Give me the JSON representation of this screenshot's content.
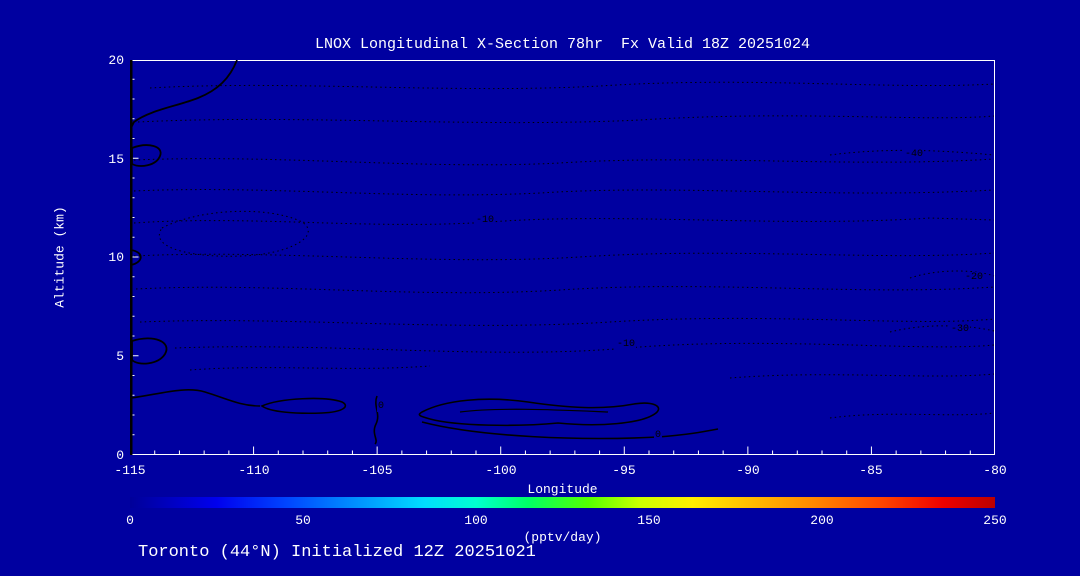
{
  "title": "LNOX Longitudinal X-Section 78hr  Fx Valid 18Z 20251024",
  "footer": "Toronto (44°N) Initialized 12Z 20251021",
  "axes": {
    "y": {
      "label": "Altitude (km)",
      "ticks": [
        "20",
        "15",
        "10",
        "5",
        "0"
      ]
    },
    "x": {
      "label": "Longitude",
      "ticks": [
        "-115",
        "-110",
        "-105",
        "-100",
        "-95",
        "-90",
        "-85",
        "-80"
      ]
    }
  },
  "colorbar": {
    "ticks": [
      "0",
      "50",
      "100",
      "150",
      "200",
      "250"
    ],
    "units": "(pptv/day)"
  },
  "contour_labels": [
    {
      "text": "-10"
    },
    {
      "text": "-10"
    },
    {
      "text": "-40"
    },
    {
      "text": "-20"
    },
    {
      "text": "-30"
    },
    {
      "text": "0"
    },
    {
      "text": "0"
    }
  ],
  "colors": {
    "background": "#0000A0",
    "text": "#FFFFFF",
    "contour": "#000000",
    "frame": "#FFFFFF"
  },
  "chart_data": {
    "type": "heatmap",
    "subtype": "contour-cross-section",
    "title": "LNOX Longitudinal X-Section 78hr  Fx Valid 18Z 20251024",
    "xlabel": "Longitude",
    "ylabel": "Altitude (km)",
    "xlim": [
      -115,
      -80
    ],
    "ylim": [
      0,
      20
    ],
    "x_ticks": [
      -115,
      -110,
      -105,
      -100,
      -95,
      -90,
      -85,
      -80
    ],
    "y_ticks": [
      0,
      5,
      10,
      15,
      20
    ],
    "colorbar": {
      "label": "(pptv/day)",
      "min": 0,
      "max": 250,
      "ticks": [
        0,
        50,
        100,
        150,
        200,
        250
      ],
      "palette": "rainbow"
    },
    "contour_style": {
      "negative": "dotted",
      "zero": "solid",
      "color": "#000000"
    },
    "labeled_contours": [
      {
        "value": -10,
        "lon": -100.6,
        "alt": 11.8
      },
      {
        "value": -10,
        "lon": -94.9,
        "alt": 5.6
      },
      {
        "value": -40,
        "lon": -83.2,
        "alt": 15.1
      },
      {
        "value": -20,
        "lon": -80.8,
        "alt": 8.8
      },
      {
        "value": -30,
        "lon": -81.3,
        "alt": 6.2
      },
      {
        "value": 0,
        "lon": -104.9,
        "alt": 2.4
      },
      {
        "value": 0,
        "lon": -93.6,
        "alt": 0.9
      }
    ],
    "field_note": "Field values near the minimum of the color scale; background shaded uniform dark blue. Dotted black contours (negative values) fill most of the section; solid zero contours near the surface between -113 and -93 and along the left boundary."
  }
}
